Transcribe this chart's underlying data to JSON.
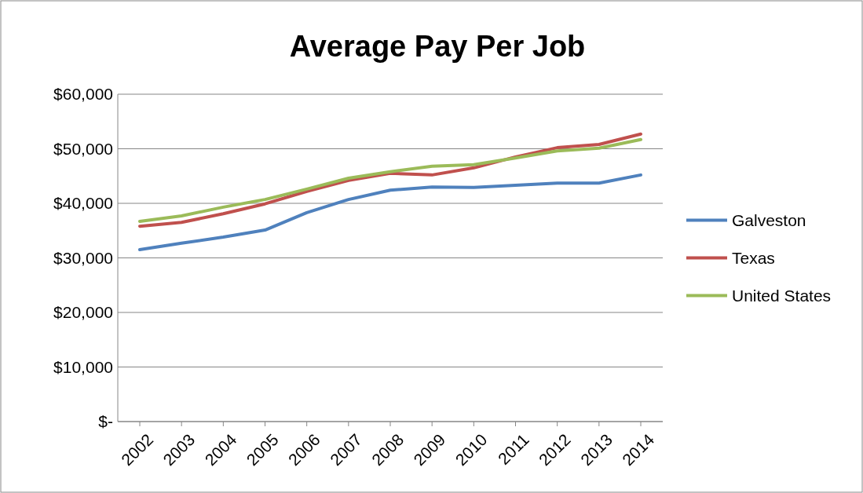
{
  "chart_data": {
    "type": "line",
    "title": "Average Pay Per Job",
    "categories": [
      "2002",
      "2003",
      "2004",
      "2005",
      "2006",
      "2007",
      "2008",
      "2009",
      "2010",
      "2011",
      "2012",
      "2013",
      "2014"
    ],
    "series": [
      {
        "name": "Galveston",
        "color": "#4f81bd",
        "values": [
          31500,
          32700,
          33800,
          35100,
          38300,
          40700,
          42400,
          43000,
          42900,
          43300,
          43700,
          43700,
          45200
        ]
      },
      {
        "name": "Texas",
        "color": "#c0504d",
        "values": [
          35800,
          36500,
          38100,
          39900,
          42200,
          44200,
          45500,
          45200,
          46500,
          48500,
          50200,
          50800,
          52700
        ]
      },
      {
        "name": "United States",
        "color": "#9bbb59",
        "values": [
          36700,
          37700,
          39300,
          40700,
          42600,
          44600,
          45800,
          46800,
          47100,
          48300,
          49600,
          50100,
          51700
        ]
      }
    ],
    "ylim": [
      0,
      60000
    ],
    "yticks": [
      {
        "value": 0,
        "label": "$-"
      },
      {
        "value": 10000,
        "label": "$10,000"
      },
      {
        "value": 20000,
        "label": "$20,000"
      },
      {
        "value": 30000,
        "label": "$30,000"
      },
      {
        "value": 40000,
        "label": "$40,000"
      },
      {
        "value": 50000,
        "label": "$50,000"
      },
      {
        "value": 60000,
        "label": "$60,000"
      }
    ],
    "grid": "y",
    "legend": "right",
    "marker": "none",
    "line_style": "solid"
  }
}
